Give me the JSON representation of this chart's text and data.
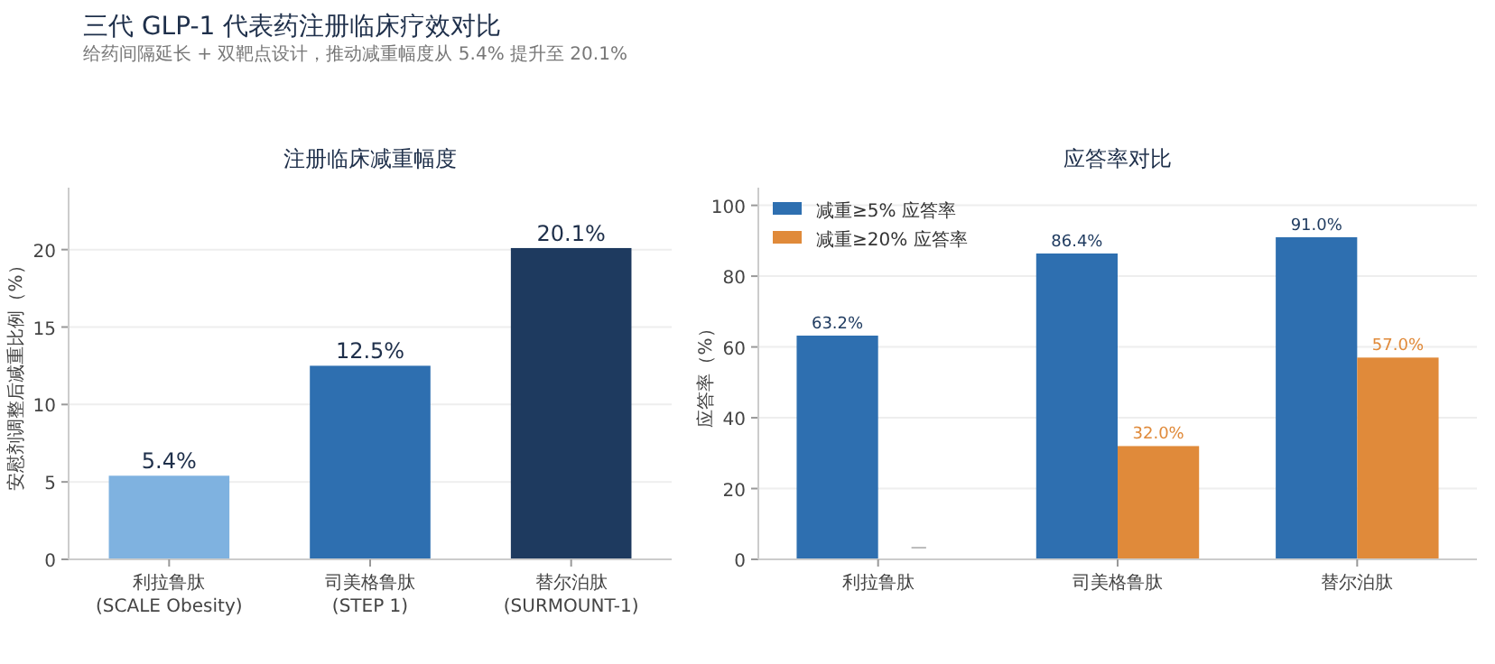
{
  "chart_data": [
    {
      "type": "bar",
      "annotations": [
        "三代 GLP-1 代表药注册临床疗效对比",
        "给药间隔延长 + 双靶点设计，推动减重幅度从 5.4% 提升至 20.1%"
      ],
      "title": "注册临床减重幅度",
      "ylabel": "安慰剂调整后减重比例（%）",
      "categories": [
        "利拉鲁肽\n(SCALE Obesity)",
        "司美格鲁肽\n(STEP 1)",
        "替尔泊肽\n(SURMOUNT-1)"
      ],
      "values": [
        5.4,
        12.5,
        20.1
      ],
      "colors": [
        "#7fb2e0",
        "#2e6fb0",
        "#1e3a5f"
      ],
      "value_labels": [
        "5.4%",
        "12.5%",
        "20.1%"
      ],
      "ylim": [
        0,
        24
      ],
      "yticks": [
        0,
        5,
        10,
        15,
        20
      ],
      "grid": "y",
      "legend": false
    },
    {
      "type": "bar",
      "title": "应答率对比",
      "ylabel": "应答率（%）",
      "categories": [
        "利拉鲁肽",
        "司美格鲁肽",
        "替尔泊肽"
      ],
      "series": [
        {
          "name": "减重≥5% 应答率",
          "color": "#2e6fb0",
          "values": [
            63.2,
            86.4,
            91.0
          ],
          "value_labels": [
            "63.2%",
            "86.4%",
            "91.0%"
          ]
        },
        {
          "name": "减重≥20% 应答率",
          "color": "#e08a3a",
          "values": [
            null,
            32.0,
            57.0
          ],
          "value_labels": [
            "—",
            "32.0%",
            "57.0%"
          ]
        }
      ],
      "ylim": [
        0,
        105
      ],
      "yticks": [
        0,
        20,
        40,
        60,
        80,
        100
      ],
      "grid": "y",
      "legend": "top left"
    }
  ]
}
